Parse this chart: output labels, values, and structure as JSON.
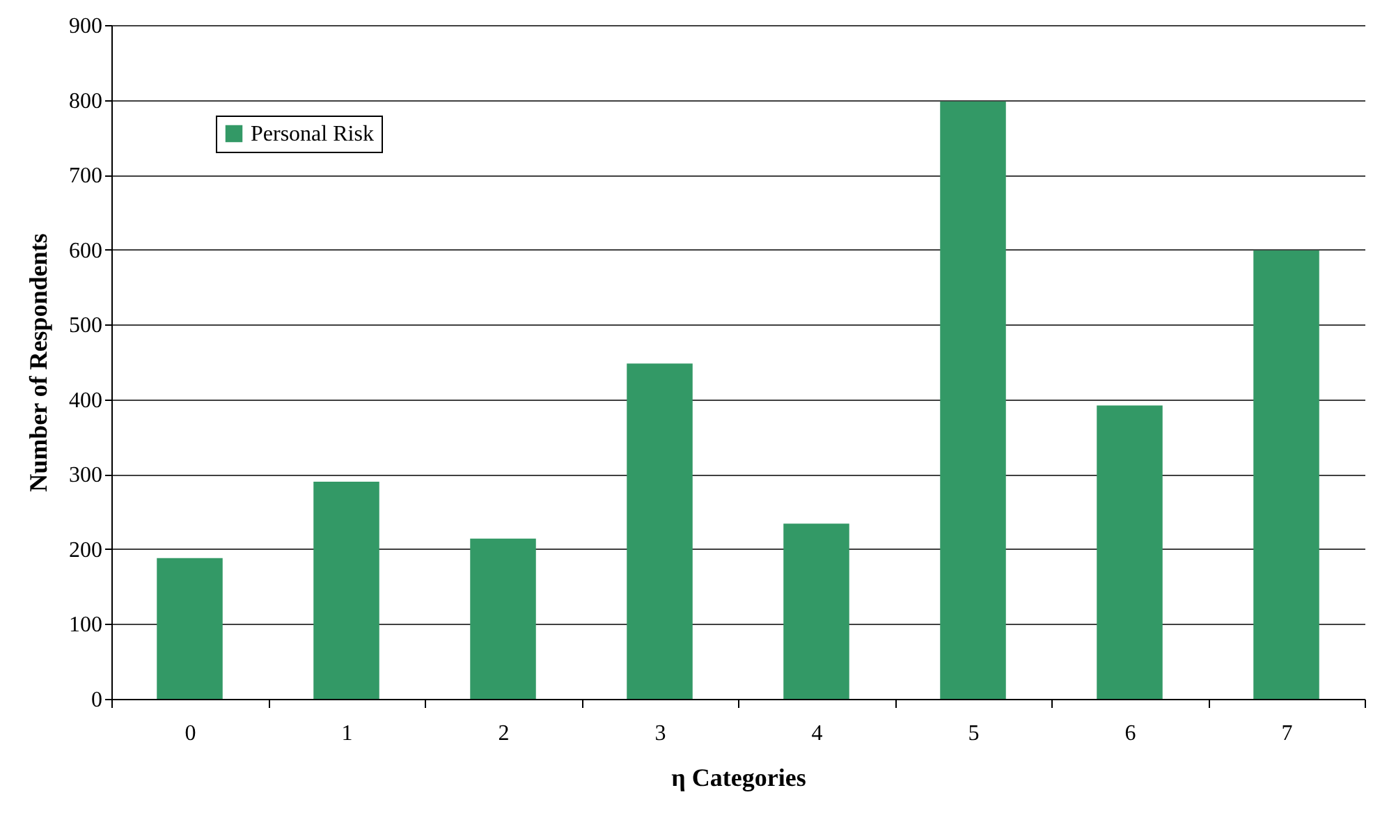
{
  "chart_data": {
    "type": "bar",
    "xlabel": "η Categories",
    "ylabel": "Number of Respondents",
    "categories": [
      "0",
      "1",
      "2",
      "3",
      "4",
      "5",
      "6",
      "7"
    ],
    "series": [
      {
        "name": "Personal Risk",
        "color": "#339966",
        "values": [
          188,
          290,
          214,
          448,
          234,
          798,
          392,
          599
        ]
      }
    ],
    "ylim": [
      0,
      900
    ],
    "yticks": [
      0,
      100,
      200,
      300,
      400,
      500,
      600,
      700,
      800,
      900
    ],
    "grid": "y",
    "legend": "top left"
  }
}
